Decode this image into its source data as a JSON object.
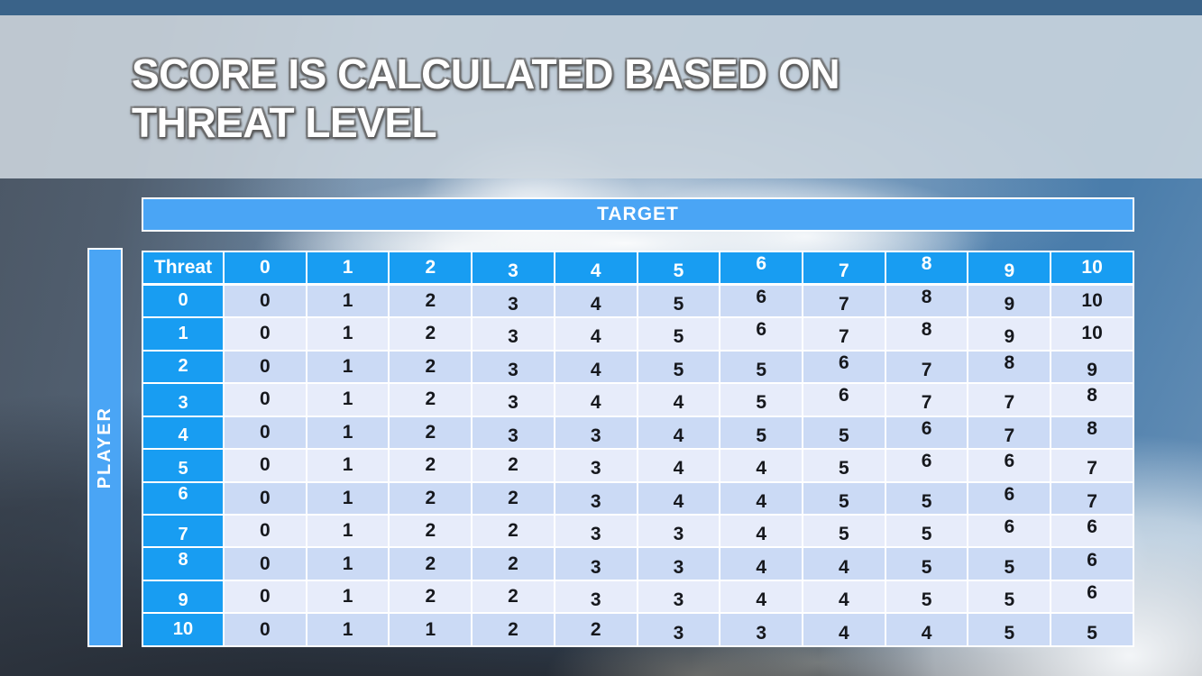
{
  "slide": {
    "title_line1": "SCORE IS CALCULATED BASED ON",
    "title_line2": "THREAT LEVEL"
  },
  "table": {
    "target_label": "TARGET",
    "player_label": "PLAYER",
    "corner_label": "Threat",
    "column_headers": [
      "0",
      "1",
      "2",
      "3",
      "4",
      "5",
      "6",
      "7",
      "8",
      "9",
      "10"
    ],
    "rows": [
      {
        "threat": "0",
        "values": [
          0,
          1,
          2,
          3,
          4,
          5,
          6,
          7,
          8,
          9,
          10
        ]
      },
      {
        "threat": "1",
        "values": [
          0,
          1,
          2,
          3,
          4,
          5,
          6,
          7,
          8,
          9,
          10
        ]
      },
      {
        "threat": "2",
        "values": [
          0,
          1,
          2,
          3,
          4,
          5,
          5,
          6,
          7,
          8,
          9
        ]
      },
      {
        "threat": "3",
        "values": [
          0,
          1,
          2,
          3,
          4,
          4,
          5,
          6,
          7,
          7,
          8
        ]
      },
      {
        "threat": "4",
        "values": [
          0,
          1,
          2,
          3,
          3,
          4,
          5,
          5,
          6,
          7,
          8
        ]
      },
      {
        "threat": "5",
        "values": [
          0,
          1,
          2,
          2,
          3,
          4,
          4,
          5,
          6,
          6,
          7
        ]
      },
      {
        "threat": "6",
        "values": [
          0,
          1,
          2,
          2,
          3,
          4,
          4,
          5,
          5,
          6,
          7
        ]
      },
      {
        "threat": "7",
        "values": [
          0,
          1,
          2,
          2,
          3,
          3,
          4,
          5,
          5,
          6,
          6
        ]
      },
      {
        "threat": "8",
        "values": [
          0,
          1,
          2,
          2,
          3,
          3,
          4,
          4,
          5,
          5,
          6
        ]
      },
      {
        "threat": "9",
        "values": [
          0,
          1,
          2,
          2,
          3,
          3,
          4,
          4,
          5,
          5,
          6
        ]
      },
      {
        "threat": "10",
        "values": [
          0,
          1,
          1,
          2,
          2,
          3,
          3,
          4,
          4,
          5,
          5
        ]
      }
    ]
  },
  "colors": {
    "top_bar": "#3a6389",
    "band_blue": "#4aa5f5",
    "header_blue": "#189df2",
    "row_even": "#cbdaf5",
    "row_odd": "#e7ecfa",
    "grid_white": "#ffffff",
    "cell_text": "#16181d",
    "title_text": "#ffffff"
  }
}
